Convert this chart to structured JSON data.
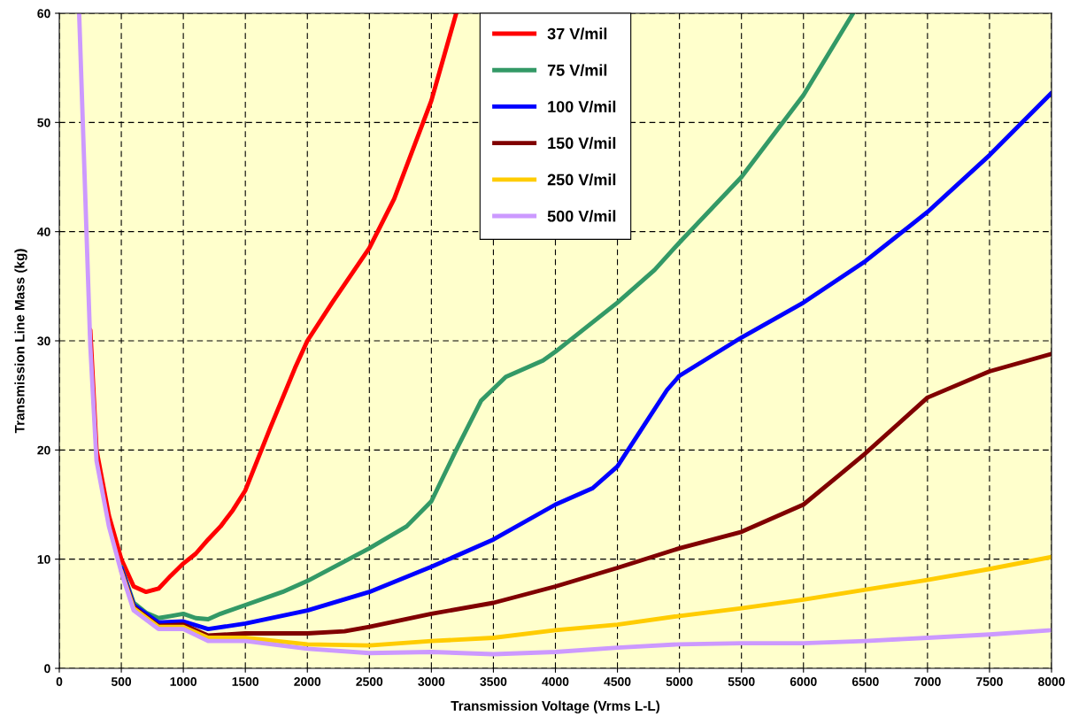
{
  "chart_data": {
    "type": "line",
    "xlabel": "Transmission Voltage (Vrms L-L)",
    "ylabel": "Transmission Line Mass (kg)",
    "xlim": [
      0,
      8000
    ],
    "xticks": [
      0,
      500,
      1000,
      1500,
      2000,
      2500,
      3000,
      3500,
      4000,
      4500,
      5000,
      5500,
      6000,
      6500,
      7000,
      7500,
      8000
    ],
    "ylim": [
      0,
      60
    ],
    "yticks": [
      0,
      10,
      20,
      30,
      40,
      50,
      60
    ],
    "grid": true,
    "legend": "top",
    "marker": "none",
    "line_style": "solid",
    "series": [
      {
        "name": "37 V/mil",
        "color": "#ff0000",
        "x": [
          250,
          300,
          400,
          500,
          600,
          700,
          800,
          900,
          1000,
          1100,
          1200,
          1300,
          1400,
          1500,
          1700,
          1900,
          2000,
          2200,
          2500,
          2700,
          3000,
          3200
        ],
        "values": [
          31,
          20,
          14,
          10,
          7.5,
          7.0,
          7.3,
          8.5,
          9.6,
          10.5,
          11.8,
          13,
          14.5,
          16.3,
          22,
          27.5,
          30,
          33.5,
          38.5,
          43,
          52,
          60
        ]
      },
      {
        "name": "75 V/mil",
        "color": "#339966",
        "x": [
          500,
          600,
          700,
          800,
          900,
          1000,
          1100,
          1200,
          1300,
          1500,
          1800,
          2000,
          2500,
          2800,
          3000,
          3200,
          3400,
          3600,
          3900,
          4000,
          4500,
          4800,
          5000,
          5500,
          6000,
          6400
        ],
        "values": [
          9.3,
          6,
          5.1,
          4.6,
          4.8,
          5.0,
          4.6,
          4.5,
          5.0,
          5.8,
          7,
          8,
          11,
          13,
          15.3,
          20,
          24.5,
          26.7,
          28.2,
          29,
          33.5,
          36.5,
          39,
          45,
          52.5,
          60
        ]
      },
      {
        "name": "100 V/mil",
        "color": "#0000ff",
        "x": [
          500,
          600,
          800,
          1000,
          1200,
          1500,
          2000,
          2500,
          3000,
          3500,
          4000,
          4300,
          4500,
          4700,
          4900,
          5000,
          5500,
          6000,
          6500,
          7000,
          7500,
          8000
        ],
        "values": [
          9.2,
          5.8,
          4.2,
          4.3,
          3.6,
          4.1,
          5.3,
          7,
          9.3,
          11.8,
          15,
          16.5,
          18.5,
          22,
          25.5,
          26.8,
          30.3,
          33.5,
          37.3,
          41.8,
          47,
          52.7
        ]
      },
      {
        "name": "150 V/mil",
        "color": "#800000",
        "x": [
          500,
          600,
          800,
          1000,
          1200,
          1500,
          2000,
          2300,
          2500,
          3000,
          3500,
          4000,
          4500,
          5000,
          5500,
          6000,
          6300,
          6500,
          7000,
          7500,
          8000
        ],
        "values": [
          9.0,
          5.6,
          3.9,
          4.0,
          3.0,
          3.2,
          3.2,
          3.4,
          3.8,
          5.0,
          6.0,
          7.5,
          9.2,
          11,
          12.5,
          15,
          17.8,
          19.7,
          24.8,
          27.2,
          28.8
        ]
      },
      {
        "name": "250 V/mil",
        "color": "#ffcc00",
        "x": [
          500,
          600,
          800,
          1000,
          1200,
          1500,
          2000,
          2500,
          3000,
          3500,
          4000,
          4500,
          5000,
          5500,
          6000,
          6500,
          7000,
          7500,
          8000
        ],
        "values": [
          8.9,
          5.5,
          3.8,
          3.8,
          2.8,
          2.8,
          2.2,
          2.1,
          2.5,
          2.8,
          3.5,
          4.0,
          4.8,
          5.5,
          6.3,
          7.2,
          8.1,
          9.1,
          10.2
        ]
      },
      {
        "name": "500 V/mil",
        "color": "#cc99ff",
        "x": [
          160,
          250,
          300,
          400,
          500,
          600,
          800,
          1000,
          1200,
          1500,
          2000,
          2500,
          3000,
          3500,
          4000,
          4500,
          5000,
          5500,
          6000,
          6500,
          7000,
          7500,
          8000
        ],
        "values": [
          60,
          29.5,
          19,
          13,
          8.8,
          5.3,
          3.6,
          3.6,
          2.5,
          2.5,
          1.8,
          1.4,
          1.5,
          1.3,
          1.5,
          1.9,
          2.2,
          2.3,
          2.3,
          2.5,
          2.8,
          3.1,
          3.5
        ]
      }
    ]
  }
}
